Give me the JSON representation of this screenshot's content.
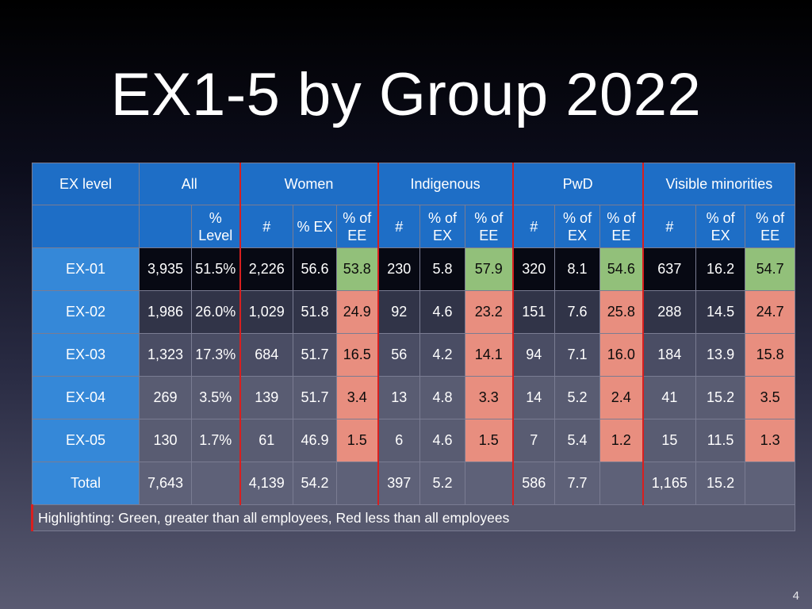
{
  "title": "EX1-5 by Group 2022",
  "page_number": "4",
  "header": {
    "groups": [
      "EX level",
      "All",
      "Women",
      "Indigenous",
      "PwD",
      "Visible minorities"
    ],
    "subheaders": [
      "",
      "",
      "% Level",
      "#",
      "% EX",
      "% of EE",
      "#",
      "% of EX",
      "% of EE",
      "#",
      "% of EX",
      "% of EE",
      "#",
      "% of EX",
      "% of EE"
    ]
  },
  "rows": [
    {
      "level": "EX-01",
      "cells": [
        "3,935",
        "51.5%",
        "2,226",
        "56.6",
        "53.8",
        "230",
        "5.8",
        "57.9",
        "320",
        "8.1",
        "54.6",
        "637",
        "16.2",
        "54.7"
      ]
    },
    {
      "level": "EX-02",
      "cells": [
        "1,986",
        "26.0%",
        "1,029",
        "51.8",
        "24.9",
        "92",
        "4.6",
        "23.2",
        "151",
        "7.6",
        "25.8",
        "288",
        "14.5",
        "24.7"
      ]
    },
    {
      "level": "EX-03",
      "cells": [
        "1,323",
        "17.3%",
        "684",
        "51.7",
        "16.5",
        "56",
        "4.2",
        "14.1",
        "94",
        "7.1",
        "16.0",
        "184",
        "13.9",
        "15.8"
      ]
    },
    {
      "level": "EX-04",
      "cells": [
        "269",
        "3.5%",
        "139",
        "51.7",
        "3.4",
        "13",
        "4.8",
        "3.3",
        "14",
        "5.2",
        "2.4",
        "41",
        "15.2",
        "3.5"
      ]
    },
    {
      "level": "EX-05",
      "cells": [
        "130",
        "1.7%",
        "61",
        "46.9",
        "1.5",
        "6",
        "4.6",
        "1.5",
        "7",
        "5.4",
        "1.2",
        "15",
        "11.5",
        "1.3"
      ]
    },
    {
      "level": "Total",
      "cells": [
        "7,643",
        "",
        "4,139",
        "54.2",
        "",
        "397",
        "5.2",
        "",
        "586",
        "7.7",
        "",
        "1,165",
        "15.2",
        ""
      ]
    }
  ],
  "highlight_colors": {
    "green": "#92c07a",
    "red": "#e88e7f"
  },
  "note": "Highlighting: Green, greater than all employees, Red less than all employees"
}
